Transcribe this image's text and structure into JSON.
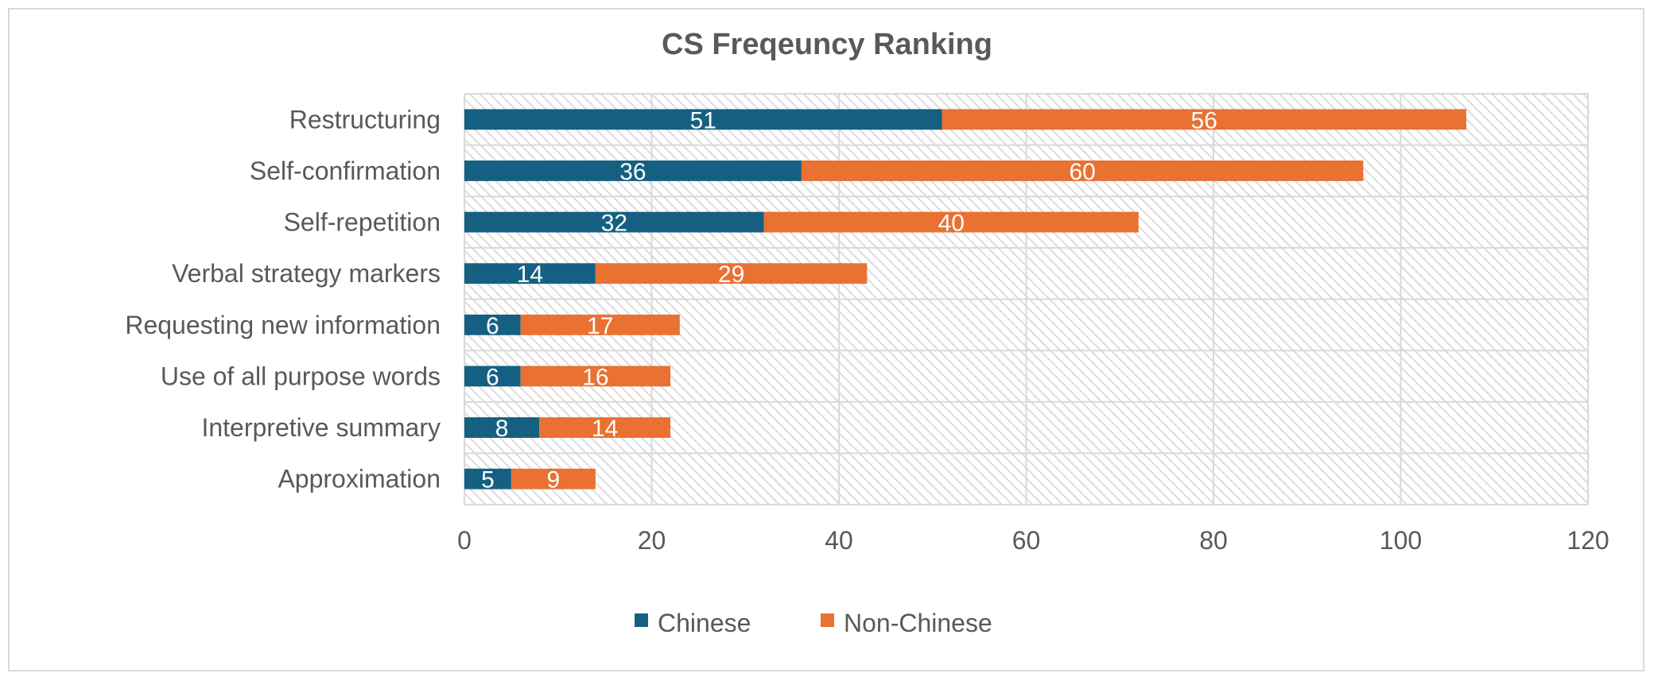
{
  "chart_data": {
    "type": "bar",
    "orientation": "horizontal",
    "stacked": true,
    "title": "CS Freqeuncy Ranking",
    "categories": [
      "Restructuring",
      "Self-confirmation",
      "Self-repetition",
      "Verbal strategy markers",
      "Requesting new information",
      "Use of all purpose words",
      "Interpretive summary",
      "Approximation"
    ],
    "series": [
      {
        "name": "Chinese",
        "color": "#156082",
        "values": [
          51,
          36,
          32,
          14,
          6,
          6,
          8,
          5
        ]
      },
      {
        "name": "Non-Chinese",
        "color": "#E97132",
        "values": [
          56,
          60,
          40,
          29,
          17,
          16,
          14,
          9
        ]
      }
    ],
    "xlim": [
      0,
      120
    ],
    "xticks": [
      0,
      20,
      40,
      60,
      80,
      100,
      120
    ],
    "grid": true,
    "legend": "bottom",
    "data_labels": true
  }
}
